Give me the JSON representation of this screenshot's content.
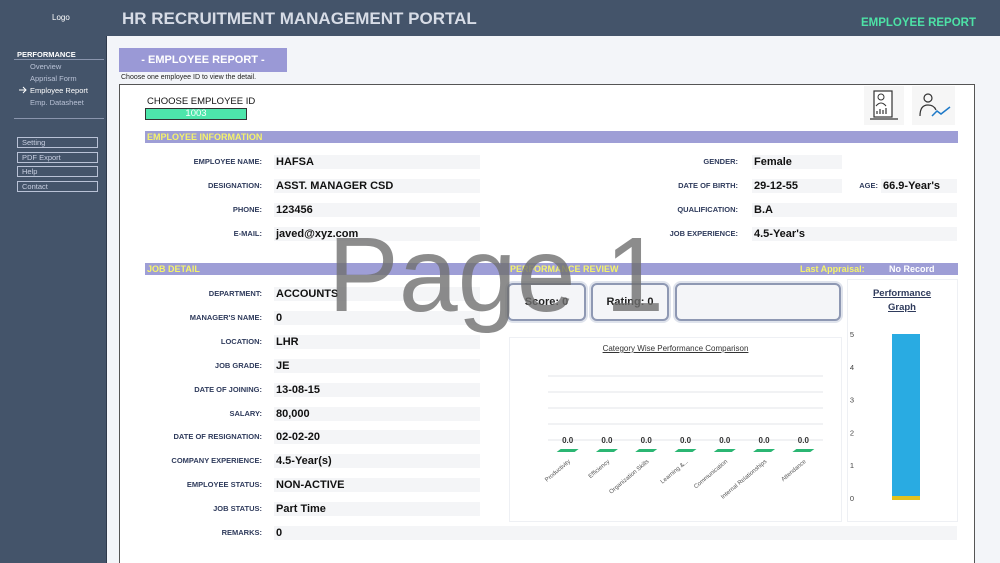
{
  "header": {
    "logo": "Logo",
    "title": "HR RECRUITMENT MANAGEMENT PORTAL",
    "page": "EMPLOYEE REPORT"
  },
  "sidebar": {
    "section": "PERFORMANCE",
    "items": [
      "Overview",
      "Apprisal Form",
      "Employee Report",
      "Emp. Datasheet"
    ],
    "active": 2,
    "buttons": [
      "Setting",
      "PDF Export",
      "Help",
      "Contact"
    ]
  },
  "report": {
    "button": "- EMPLOYEE REPORT -",
    "hint": "Choose one employee ID to view the detail.",
    "choose_label": "CHOOSE EMPLOYEE ID",
    "employee_id": "1003"
  },
  "employee_information": {
    "title": "EMPLOYEE INFORMATION",
    "left": [
      {
        "label": "EMPLOYEE NAME:",
        "value": "HAFSA"
      },
      {
        "label": "DESIGNATION:",
        "value": "ASST. MANAGER CSD"
      },
      {
        "label": "PHONE:",
        "value": "123456"
      },
      {
        "label": "E-MAIL:",
        "value": "javed@xyz.com"
      }
    ],
    "right": [
      {
        "label": "GENDER:",
        "value": "Female"
      },
      {
        "label": "DATE OF BIRTH:",
        "value": "29-12-55"
      },
      {
        "label": "QUALIFICATION:",
        "value": "B.A"
      },
      {
        "label": "JOB EXPERIENCE:",
        "value": "4.5-Year's"
      }
    ],
    "age": {
      "label": "AGE:",
      "value": "66.9-Year's"
    }
  },
  "job_detail": {
    "title": "JOB DETAIL",
    "fields": [
      {
        "label": "DEPARTMENT:",
        "value": "ACCOUNTS"
      },
      {
        "label": "MANAGER'S NAME:",
        "value": "0"
      },
      {
        "label": "LOCATION:",
        "value": "LHR"
      },
      {
        "label": "JOB GRADE:",
        "value": "JE"
      },
      {
        "label": "DATE OF JOINING:",
        "value": "13-08-15"
      },
      {
        "label": "SALARY:",
        "value": "80,000"
      },
      {
        "label": "DATE OF RESIGNATION:",
        "value": "02-02-20"
      },
      {
        "label": "COMPANY EXPERIENCE:",
        "value": "4.5-Year(s)"
      },
      {
        "label": "EMPLOYEE STATUS:",
        "value": "NON-ACTIVE"
      },
      {
        "label": "JOB STATUS:",
        "value": "Part Time"
      },
      {
        "label": "REMARKS:",
        "value": "0"
      }
    ]
  },
  "performance_review": {
    "title": "PERFORMANCE REVIEW",
    "last_appraisal_label": "Last Appraisal:",
    "last_appraisal": "No Record",
    "score": "Score: 0",
    "rating": "Rating: 0"
  },
  "category_chart": {
    "type": "bar",
    "title": "Category Wise Performance Comparison",
    "categories": [
      "Productivity",
      "Efficiency",
      "Organization Skills",
      "Learning &...",
      "Communication",
      "Internal Relationships",
      "Attendance"
    ],
    "values": [
      0,
      0,
      0,
      0,
      0,
      0,
      0
    ],
    "value_labels": [
      "0.0",
      "0.0",
      "0.0",
      "0.0",
      "0.0",
      "0.0",
      "0.0"
    ],
    "color": "#2bb673"
  },
  "performance_graph": {
    "type": "bar",
    "title": "Performance Graph",
    "values": [
      5
    ],
    "color": "#29abe2",
    "ylim": [
      0,
      5
    ],
    "yticks": [
      0,
      1,
      2,
      3,
      4,
      5
    ]
  },
  "watermark": "Page 1"
}
